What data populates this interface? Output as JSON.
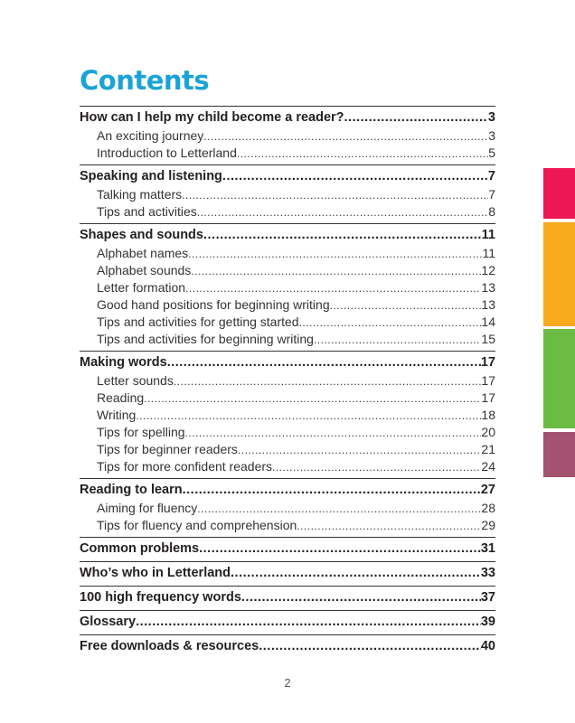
{
  "title": "Contents",
  "page_number": "2",
  "tab_colors": [
    "#ee1654",
    "#f9aa1c",
    "#6cbc44",
    "#a45270"
  ],
  "sections": [
    {
      "title": "How can I help my child become a reader?",
      "page": "3",
      "items": [
        {
          "title": "An exciting journey",
          "page": "3"
        },
        {
          "title": "Introduction to Letterland",
          "page": "5"
        }
      ]
    },
    {
      "title": "Speaking and listening",
      "page": "7",
      "items": [
        {
          "title": "Talking matters",
          "page": "7"
        },
        {
          "title": "Tips and activities",
          "page": "8"
        }
      ]
    },
    {
      "title": "Shapes and sounds",
      "page": "11",
      "items": [
        {
          "title": "Alphabet names",
          "page": "11"
        },
        {
          "title": "Alphabet sounds",
          "page": "12"
        },
        {
          "title": "Letter formation",
          "page": "13"
        },
        {
          "title": "Good hand positions for beginning writing",
          "page": "13"
        },
        {
          "title": "Tips and activities for getting started",
          "page": "14"
        },
        {
          "title": "Tips and activities for beginning writing",
          "page": "15"
        }
      ]
    },
    {
      "title": "Making words",
      "page": "17",
      "items": [
        {
          "title": "Letter sounds",
          "page": "17"
        },
        {
          "title": "Reading",
          "page": "17"
        },
        {
          "title": "Writing",
          "page": "18"
        },
        {
          "title": "Tips for spelling",
          "page": "20"
        },
        {
          "title": "Tips for beginner readers",
          "page": "21"
        },
        {
          "title": "Tips for more confident readers",
          "page": "24"
        }
      ]
    },
    {
      "title": "Reading to learn",
      "page": "27",
      "items": [
        {
          "title": "Aiming for fluency",
          "page": "28"
        },
        {
          "title": "Tips for fluency and comprehension",
          "page": "29"
        }
      ]
    },
    {
      "title": "Common problems",
      "page": "31",
      "items": []
    },
    {
      "title": "Who’s who in Letterland",
      "page": "33",
      "items": []
    },
    {
      "title": "100 high frequency words",
      "page": "37",
      "items": []
    },
    {
      "title": "Glossary",
      "page": "39",
      "items": []
    },
    {
      "title": "Free downloads & resources",
      "page": "40",
      "items": []
    }
  ]
}
